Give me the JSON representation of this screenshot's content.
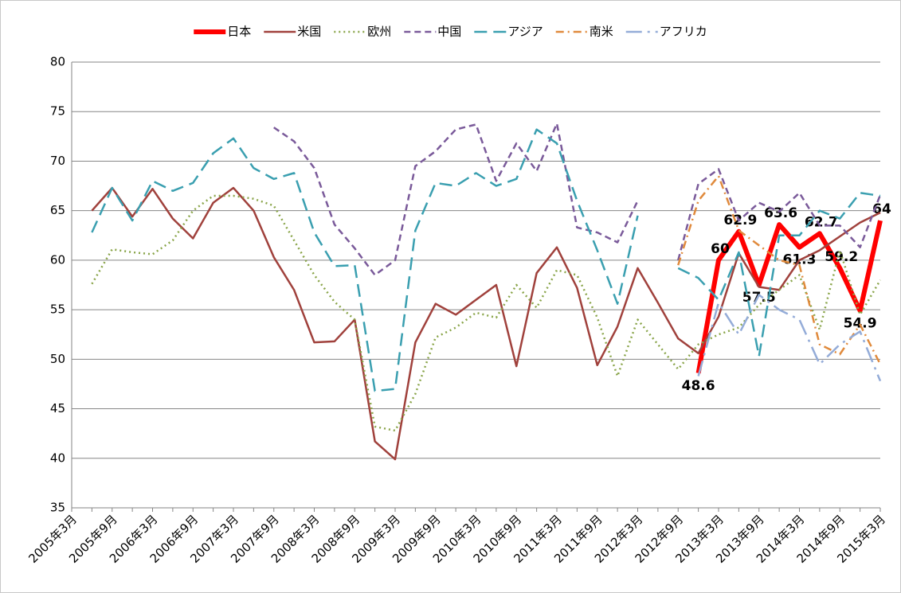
{
  "chart_data": {
    "type": "line",
    "categories": [
      "2005年3月",
      null,
      "2005年9月",
      null,
      "2006年3月",
      null,
      "2006年9月",
      null,
      "2007年3月",
      null,
      "2007年9月",
      null,
      "2008年3月",
      null,
      "2008年9月",
      null,
      "2009年3月",
      null,
      "2009年9月",
      null,
      "2010年3月",
      null,
      "2010年9月",
      null,
      "2011年3月",
      null,
      "2011年9月",
      null,
      "2012年3月",
      null,
      "2012年9月",
      null,
      "2013年3月",
      null,
      "2013年9月",
      null,
      "2014年3月",
      null,
      "2014年9月",
      null,
      "2015年3月"
    ],
    "series": [
      {
        "name": "日本",
        "color": "#ff0000",
        "style": "thick",
        "data_labels": true,
        "values": [
          null,
          null,
          null,
          null,
          null,
          null,
          null,
          null,
          null,
          null,
          null,
          null,
          null,
          null,
          null,
          null,
          null,
          null,
          null,
          null,
          null,
          null,
          null,
          null,
          null,
          null,
          null,
          null,
          null,
          null,
          null,
          48.6,
          60,
          62.9,
          57.5,
          63.6,
          61.3,
          62.7,
          59.2,
          54.9,
          64
        ]
      },
      {
        "name": "米国",
        "color": "#a0413c",
        "style": "solid",
        "values": [
          null,
          65,
          67.3,
          64.4,
          67.2,
          64.2,
          62.2,
          65.8,
          67.3,
          65,
          60.3,
          57,
          51.7,
          51.8,
          54,
          41.7,
          39.9,
          51.7,
          55.6,
          54.5,
          56,
          57.5,
          49.3,
          58.7,
          61.3,
          57.2,
          49.4,
          53.3,
          59.2,
          55.7,
          52.1,
          50.6,
          54.3,
          60.7,
          57.3,
          57,
          60,
          61,
          62.4,
          63.8,
          64.8
        ]
      },
      {
        "name": "欧州",
        "color": "#8aa54a",
        "style": "dotted",
        "values": [
          null,
          57.6,
          61.1,
          60.8,
          60.6,
          62,
          65,
          66.5,
          66.5,
          66.2,
          65.5,
          62,
          58.5,
          55.8,
          54,
          43.2,
          42.8,
          46.5,
          52.2,
          53.2,
          54.7,
          54.2,
          57.5,
          55.2,
          59,
          58.5,
          54.2,
          48.3,
          54,
          51.5,
          49,
          51.5,
          52.5,
          53.2,
          55.5,
          57,
          58.5,
          53,
          61,
          54.5,
          58
        ]
      },
      {
        "name": "中国",
        "color": "#7a5a9a",
        "style": "dashed",
        "values": [
          null,
          null,
          null,
          null,
          null,
          null,
          null,
          null,
          null,
          null,
          73.4,
          72,
          69.3,
          63.6,
          61.2,
          58.5,
          60,
          69.5,
          71,
          73.2,
          73.7,
          68,
          71.8,
          69,
          73.8,
          63.3,
          62.8,
          61.8,
          66,
          null,
          60,
          67.7,
          69.2,
          64,
          65.8,
          64.9,
          66.8,
          63.5,
          63.5,
          61.3,
          66.6
        ]
      },
      {
        "name": "アジア",
        "color": "#3a9fb0",
        "style": "longdash",
        "values": [
          null,
          62.8,
          67.3,
          64,
          68,
          67,
          67.8,
          70.8,
          72.3,
          69.3,
          68.2,
          68.8,
          62.8,
          59.4,
          59.5,
          46.8,
          47,
          63,
          67.8,
          67.5,
          68.8,
          67.5,
          68.2,
          73.2,
          71.8,
          66,
          61,
          55.6,
          64.5,
          null,
          59.2,
          58.2,
          56,
          60.8,
          50.3,
          62.5,
          62.5,
          65,
          64.2,
          66.8,
          66.5
        ]
      },
      {
        "name": "南米",
        "color": "#e08a3c",
        "style": "dashdot",
        "values": [
          null,
          null,
          null,
          null,
          null,
          null,
          null,
          null,
          null,
          null,
          null,
          null,
          null,
          null,
          null,
          null,
          null,
          null,
          null,
          null,
          null,
          null,
          null,
          null,
          null,
          null,
          null,
          null,
          null,
          null,
          59.5,
          66,
          68.5,
          63,
          61.5,
          60,
          59.5,
          51.5,
          50.5,
          53.5,
          49.5
        ]
      },
      {
        "name": "アフリカ",
        "color": "#94acd8",
        "style": "longdashdot",
        "values": [
          null,
          null,
          null,
          null,
          null,
          null,
          null,
          null,
          null,
          null,
          null,
          null,
          null,
          null,
          null,
          null,
          null,
          null,
          null,
          null,
          null,
          null,
          null,
          null,
          null,
          null,
          null,
          null,
          null,
          null,
          null,
          48.3,
          55.7,
          52.5,
          56.5,
          55,
          54,
          49.5,
          51.5,
          52.8,
          47.8
        ]
      }
    ],
    "ylim": [
      35,
      80
    ],
    "yticks": [
      35,
      40,
      45,
      50,
      55,
      60,
      65,
      70,
      75,
      80
    ],
    "grid": true,
    "legend": "top"
  }
}
